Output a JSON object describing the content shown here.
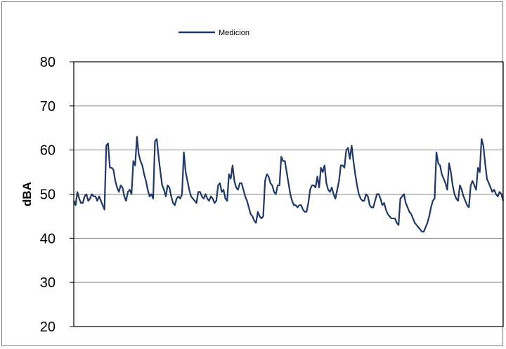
{
  "chart_data": {
    "type": "line",
    "title": "",
    "xlabel": "",
    "ylabel": "dBA",
    "ylim": [
      20,
      80
    ],
    "y_ticks": [
      80,
      70,
      60,
      50,
      40,
      30,
      20
    ],
    "grid": "horizontal",
    "legend_position": "top-center",
    "series": [
      {
        "name": "Medicion",
        "color": "#1f3864",
        "values": [
          48.5,
          47.5,
          50.5,
          49,
          48,
          48,
          49.5,
          50,
          48.5,
          49,
          50,
          49.5,
          49.5,
          48.5,
          49.5,
          48.5,
          47.5,
          46.5,
          61,
          61.5,
          56,
          56,
          55.5,
          53,
          51.5,
          50.5,
          52,
          51.5,
          49.5,
          48.5,
          50.5,
          51,
          50,
          57.5,
          56.5,
          63,
          59,
          57.5,
          56.5,
          54.5,
          53,
          51,
          49.5,
          50,
          49,
          62,
          62.5,
          58.5,
          55,
          52,
          51,
          49.5,
          52,
          51.5,
          49.5,
          48,
          47.5,
          49,
          49.5,
          49,
          50,
          59.5,
          55,
          53,
          51,
          49.5,
          49,
          48.5,
          48,
          50.5,
          50.5,
          49.5,
          49,
          50,
          49,
          48.5,
          49.5,
          49,
          48,
          48.5,
          52,
          52.5,
          50.5,
          51,
          49,
          48.5,
          54.5,
          53.5,
          56.5,
          53,
          51.5,
          51,
          52.5,
          52.5,
          51,
          49.5,
          48.5,
          47,
          45.5,
          45,
          44,
          43.5,
          46,
          45,
          44.5,
          45,
          53,
          54.5,
          54,
          52.5,
          52,
          50.5,
          50,
          52,
          52,
          58.5,
          57.5,
          57.5,
          55,
          52.5,
          50,
          48.5,
          47.5,
          47.5,
          47,
          47.5,
          47.5,
          46.5,
          46,
          46,
          48,
          51,
          52,
          52,
          51.5,
          54,
          51.5,
          56,
          55,
          56.5,
          52.5,
          51,
          50.5,
          51.5,
          50,
          49,
          51,
          53,
          56.5,
          56.5,
          56,
          60,
          60.5,
          58,
          61,
          57.5,
          54.5,
          52,
          50,
          49,
          48.5,
          48.5,
          50,
          49.5,
          47.5,
          47,
          47,
          48.5,
          50,
          50,
          49,
          47.5,
          48,
          46.5,
          45.5,
          45,
          44.5,
          44.5,
          44.5,
          43.5,
          43,
          49,
          49.5,
          50,
          48,
          47,
          46,
          45.5,
          44.5,
          43.5,
          43,
          42.5,
          42,
          41.5,
          41.5,
          42.5,
          43.5,
          45,
          47,
          48.5,
          49,
          59.5,
          57,
          56.5,
          54.5,
          53.5,
          52.5,
          51,
          57,
          55,
          52,
          50,
          49,
          48.5,
          52,
          51,
          49.5,
          48.5,
          47.5,
          47,
          52,
          53,
          52,
          51,
          56,
          55,
          62.5,
          61,
          57,
          53.5,
          52.5,
          51.5,
          50.5,
          51,
          50,
          49.5,
          50.5,
          50,
          48.5
        ]
      }
    ]
  }
}
